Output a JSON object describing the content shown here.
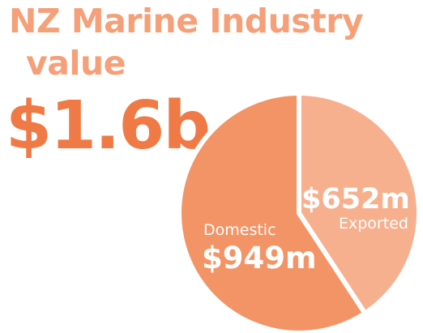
{
  "header": {
    "title_line1": "NZ Marine Industry",
    "title_line2": "value",
    "total": "$1.6b"
  },
  "colors": {
    "title": "#f5a078",
    "total": "#f07a45",
    "domestic": "#f39466",
    "exported": "#f7b08e",
    "separator": "#ffffff"
  },
  "chart_data": {
    "type": "pie",
    "title": "NZ Marine Industry value",
    "total_label": "$1.6b",
    "slices": [
      {
        "name": "Domestic",
        "value": 949,
        "value_label": "$949m"
      },
      {
        "name": "Exported",
        "value": 652,
        "value_label": "$652m"
      }
    ]
  }
}
